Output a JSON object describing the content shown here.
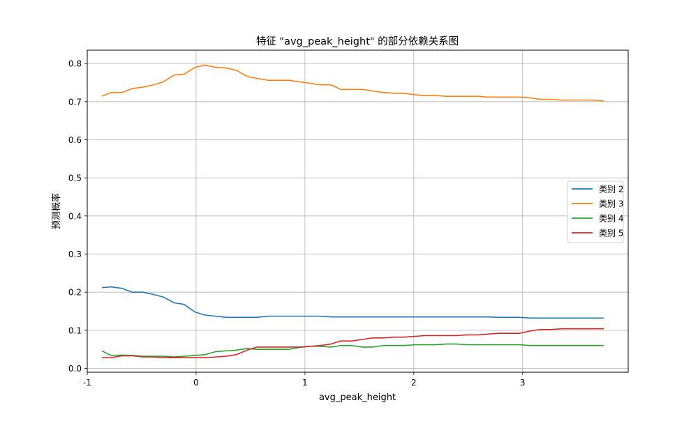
{
  "chart_data": {
    "type": "line",
    "title": "特征 \"avg_peak_height\" 的部分依赖关系图",
    "xlabel": "avg_peak_height",
    "ylabel": "预测概率",
    "xlim": [
      -1.0,
      3.97
    ],
    "ylim": [
      -0.01,
      0.835
    ],
    "x_ticks": [
      -1,
      0,
      1,
      2,
      3
    ],
    "x_tick_labels": [
      "-1",
      "0",
      "1",
      "2",
      "3"
    ],
    "y_ticks": [
      0.0,
      0.1,
      0.2,
      0.3,
      0.4,
      0.5,
      0.6,
      0.7,
      0.8
    ],
    "y_tick_labels": [
      "0.0",
      "0.1",
      "0.2",
      "0.3",
      "0.4",
      "0.5",
      "0.6",
      "0.7",
      "0.8"
    ],
    "grid": true,
    "legend_position": "center-right",
    "x": [
      -0.86,
      -0.78,
      -0.68,
      -0.59,
      -0.49,
      -0.39,
      -0.3,
      -0.2,
      -0.11,
      -0.01,
      0.08,
      0.18,
      0.28,
      0.37,
      0.47,
      0.56,
      0.66,
      0.76,
      0.85,
      0.95,
      1.05,
      1.14,
      1.24,
      1.33,
      1.43,
      1.53,
      1.62,
      1.72,
      1.82,
      1.91,
      2.01,
      2.1,
      2.2,
      2.3,
      2.39,
      2.49,
      2.59,
      2.68,
      2.78,
      2.87,
      2.97,
      3.07,
      3.16,
      3.26,
      3.36,
      3.45,
      3.55,
      3.64,
      3.74
    ],
    "series": [
      {
        "name": "类别 2",
        "color": "#1f77b4",
        "values": [
          0.212,
          0.214,
          0.21,
          0.2,
          0.2,
          0.194,
          0.187,
          0.172,
          0.168,
          0.148,
          0.14,
          0.137,
          0.134,
          0.134,
          0.134,
          0.134,
          0.137,
          0.137,
          0.137,
          0.137,
          0.137,
          0.137,
          0.135,
          0.135,
          0.135,
          0.135,
          0.135,
          0.135,
          0.135,
          0.135,
          0.135,
          0.135,
          0.135,
          0.135,
          0.135,
          0.135,
          0.135,
          0.135,
          0.134,
          0.134,
          0.134,
          0.132,
          0.132,
          0.132,
          0.132,
          0.132,
          0.132,
          0.132,
          0.132
        ]
      },
      {
        "name": "类别 3",
        "color": "#ff7f0e",
        "values": [
          0.715,
          0.724,
          0.724,
          0.734,
          0.738,
          0.744,
          0.752,
          0.77,
          0.772,
          0.79,
          0.796,
          0.79,
          0.788,
          0.782,
          0.766,
          0.761,
          0.756,
          0.756,
          0.756,
          0.752,
          0.748,
          0.744,
          0.744,
          0.732,
          0.732,
          0.732,
          0.728,
          0.724,
          0.722,
          0.722,
          0.718,
          0.716,
          0.716,
          0.714,
          0.714,
          0.714,
          0.714,
          0.712,
          0.712,
          0.712,
          0.712,
          0.71,
          0.706,
          0.706,
          0.704,
          0.704,
          0.704,
          0.704,
          0.702
        ]
      },
      {
        "name": "类别 4",
        "color": "#2ca02c",
        "values": [
          0.045,
          0.034,
          0.035,
          0.034,
          0.032,
          0.032,
          0.032,
          0.03,
          0.032,
          0.034,
          0.036,
          0.044,
          0.046,
          0.048,
          0.052,
          0.05,
          0.05,
          0.05,
          0.05,
          0.055,
          0.058,
          0.058,
          0.056,
          0.06,
          0.06,
          0.056,
          0.056,
          0.06,
          0.06,
          0.06,
          0.062,
          0.062,
          0.062,
          0.064,
          0.064,
          0.062,
          0.062,
          0.062,
          0.062,
          0.062,
          0.062,
          0.06,
          0.06,
          0.06,
          0.06,
          0.06,
          0.06,
          0.06,
          0.06
        ]
      },
      {
        "name": "类别 5",
        "color": "#d62728",
        "values": [
          0.028,
          0.028,
          0.033,
          0.033,
          0.03,
          0.03,
          0.028,
          0.028,
          0.028,
          0.028,
          0.028,
          0.03,
          0.032,
          0.036,
          0.048,
          0.056,
          0.056,
          0.056,
          0.056,
          0.056,
          0.058,
          0.06,
          0.064,
          0.072,
          0.072,
          0.076,
          0.08,
          0.08,
          0.082,
          0.082,
          0.084,
          0.086,
          0.086,
          0.086,
          0.086,
          0.088,
          0.088,
          0.09,
          0.092,
          0.092,
          0.092,
          0.098,
          0.102,
          0.102,
          0.104,
          0.104,
          0.104,
          0.104,
          0.104
        ]
      }
    ]
  }
}
